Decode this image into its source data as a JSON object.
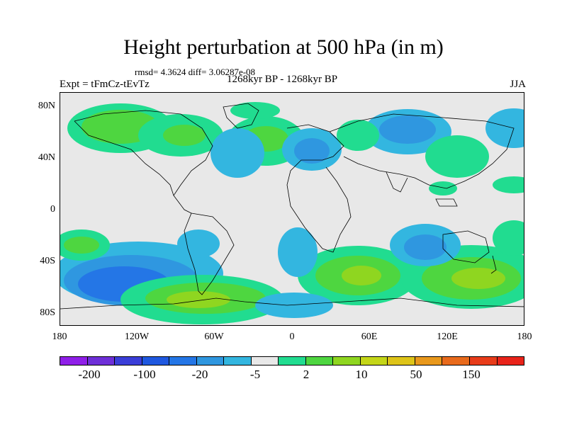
{
  "title": "Height perturbation at 500 hPa (in m)",
  "rmsd_line": "rmsd= 4.3624 diff= 3.06287e-08",
  "experiment": "Expt = tFmCz-tEvTz",
  "period": "1268kyr BP - 1268kyr BP",
  "season": "JJA",
  "lat_labels": [
    "80N",
    "40N",
    "0",
    "40S",
    "80S"
  ],
  "lon_labels": [
    "180",
    "120W",
    "60W",
    "0",
    "60E",
    "120E",
    "180"
  ],
  "colorbar": {
    "colors": [
      "#8f1fe8",
      "#6e2fd8",
      "#3a3ed8",
      "#1f58e0",
      "#2476e6",
      "#2f97e0",
      "#33b6e0",
      "#e8e8e8",
      "#21dc90",
      "#4ed640",
      "#8fd620",
      "#c4d618",
      "#dec418",
      "#e8981c",
      "#e86a1c",
      "#e83c1a",
      "#e8231a"
    ],
    "labels": [
      "-200",
      "-100",
      "-20",
      "-5",
      "2",
      "10",
      "50",
      "150"
    ]
  },
  "chart_data": {
    "type": "heatmap",
    "variable": "500 hPa height perturbation",
    "units": "m",
    "season": "JJA",
    "lon_range": [
      -180,
      180
    ],
    "lat_range": [
      -90,
      90
    ],
    "contour_levels": [
      -200,
      -100,
      -20,
      -5,
      2,
      10,
      50,
      150
    ],
    "anomalies": [
      {
        "lon": -90,
        "lat": -70,
        "value": 50
      },
      {
        "lon": -135,
        "lat": -52,
        "value": -20
      },
      {
        "lon": 45,
        "lat": -45,
        "value": 50
      },
      {
        "lon": 140,
        "lat": -48,
        "value": 50
      },
      {
        "lon": 100,
        "lat": -30,
        "value": -5
      },
      {
        "lon": 90,
        "lat": 55,
        "value": -5
      },
      {
        "lon": -20,
        "lat": 55,
        "value": 10
      },
      {
        "lon": -90,
        "lat": 50,
        "value": 10
      },
      {
        "lon": -60,
        "lat": 40,
        "value": -5
      },
      {
        "lon": -25,
        "lat": -30,
        "value": -5
      },
      {
        "lon": -155,
        "lat": -25,
        "value": 10
      }
    ]
  }
}
